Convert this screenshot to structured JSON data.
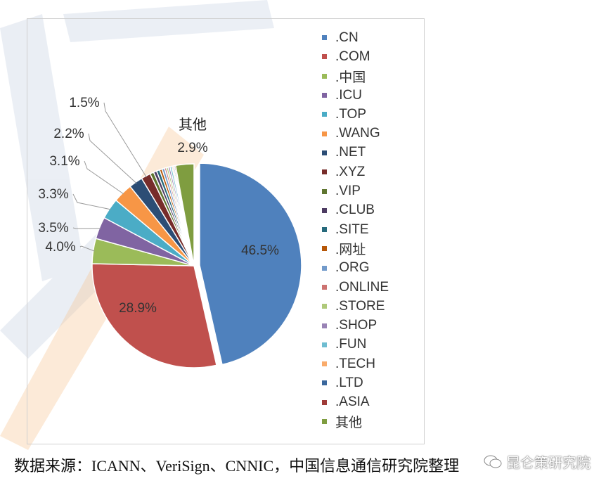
{
  "chart_data": {
    "type": "pie",
    "title": "",
    "series": [
      {
        "label": ".CN",
        "value": 46.5,
        "display": "46.5%",
        "color": "#4f81bd"
      },
      {
        "label": ".COM",
        "value": 28.9,
        "display": "28.9%",
        "color": "#c0504d"
      },
      {
        "label": ".中国",
        "value": 4.0,
        "display": "4.0%",
        "color": "#9bbb59"
      },
      {
        "label": ".ICU",
        "value": 3.5,
        "display": "3.5%",
        "color": "#8064a2"
      },
      {
        "label": ".TOP",
        "value": 3.3,
        "display": "3.3%",
        "color": "#4bacc6"
      },
      {
        "label": ".WANG",
        "value": 3.1,
        "display": "3.1%",
        "color": "#f79646"
      },
      {
        "label": ".NET",
        "value": 2.2,
        "display": "2.2%",
        "color": "#2c4d75"
      },
      {
        "label": ".XYZ",
        "value": 1.5,
        "display": "1.5%",
        "color": "#772c2a"
      },
      {
        "label": ".VIP",
        "value": 0.6,
        "color": "#5f7530"
      },
      {
        "label": ".CLUB",
        "value": 0.5,
        "color": "#4d3b62"
      },
      {
        "label": ".SITE",
        "value": 0.5,
        "color": "#276a7c"
      },
      {
        "label": ".网址",
        "value": 0.4,
        "color": "#b65708"
      },
      {
        "label": ".ORG",
        "value": 0.4,
        "color": "#729aca"
      },
      {
        "label": ".ONLINE",
        "value": 0.3,
        "color": "#cd7371"
      },
      {
        "label": ".STORE",
        "value": 0.3,
        "color": "#afc97a"
      },
      {
        "label": ".SHOP",
        "value": 0.3,
        "color": "#9983b5"
      },
      {
        "label": ".FUN",
        "value": 0.3,
        "color": "#6fbdd1"
      },
      {
        "label": ".TECH",
        "value": 0.2,
        "color": "#f9ab6b"
      },
      {
        "label": ".LTD",
        "value": 0.2,
        "color": "#3a679c"
      },
      {
        "label": ".ASIA",
        "value": 0.2,
        "color": "#9f3b38"
      },
      {
        "label": "其他",
        "value": 2.9,
        "display": "2.9%",
        "color": "#7f9d40",
        "callout_name": "其他"
      }
    ],
    "legend_position": "right"
  },
  "footer": {
    "source": "数据来源：ICANN、VeriSign、CNNIC，中国信息通信研究院整理",
    "wechat_label": "昆仑策研究院"
  }
}
